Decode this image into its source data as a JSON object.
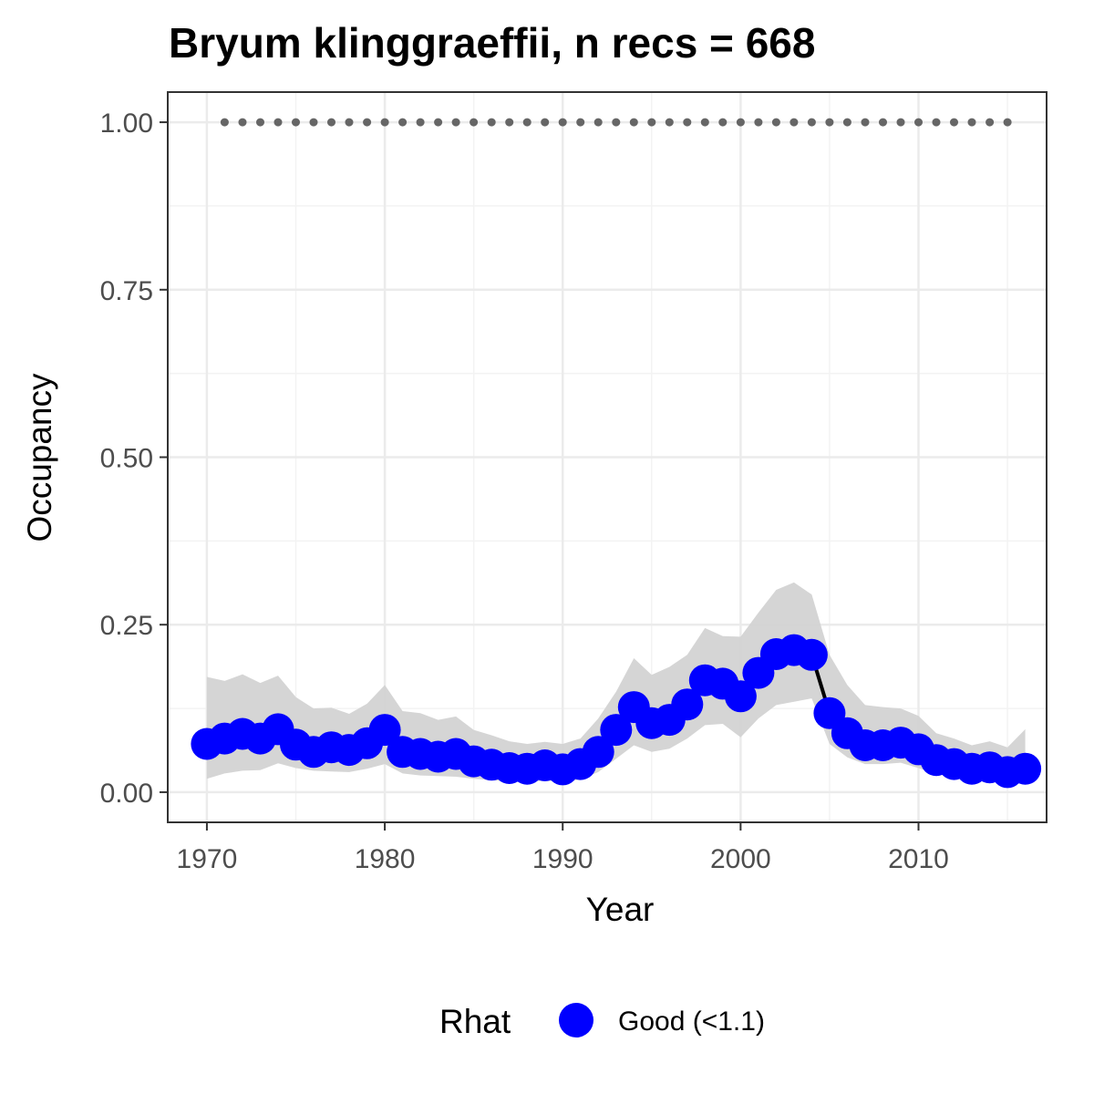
{
  "chart_data": {
    "type": "line",
    "title": "Bryum klinggraeffii, n recs = 668",
    "xlabel": "Year",
    "ylabel": "Occupancy",
    "xlim": [
      1967.8,
      2017.2
    ],
    "ylim": [
      -0.045,
      1.045
    ],
    "x_ticks": [
      1970,
      1980,
      1990,
      2000,
      2010
    ],
    "y_ticks": [
      0.0,
      0.25,
      0.5,
      0.75,
      1.0
    ],
    "y_tick_labels": [
      "0.00",
      "0.25",
      "0.50",
      "0.75",
      "1.00"
    ],
    "grid": true,
    "legend_position": "bottom",
    "series": [
      {
        "name": "Good (<1.1)",
        "color": "#0000ff",
        "x": [
          1970,
          1971,
          1972,
          1973,
          1974,
          1975,
          1976,
          1977,
          1978,
          1979,
          1980,
          1981,
          1982,
          1983,
          1984,
          1985,
          1986,
          1987,
          1988,
          1989,
          1990,
          1991,
          1992,
          1993,
          1994,
          1995,
          1996,
          1997,
          1998,
          1999,
          2000,
          2001,
          2002,
          2003,
          2004,
          2005,
          2006,
          2007,
          2008,
          2009,
          2010,
          2011,
          2012,
          2013,
          2014,
          2015,
          2016
        ],
        "y": [
          0.072,
          0.08,
          0.087,
          0.08,
          0.094,
          0.071,
          0.06,
          0.067,
          0.063,
          0.073,
          0.093,
          0.06,
          0.057,
          0.053,
          0.057,
          0.046,
          0.041,
          0.036,
          0.035,
          0.04,
          0.034,
          0.042,
          0.06,
          0.093,
          0.127,
          0.103,
          0.108,
          0.131,
          0.167,
          0.162,
          0.143,
          0.178,
          0.206,
          0.212,
          0.205,
          0.118,
          0.088,
          0.07,
          0.07,
          0.074,
          0.064,
          0.048,
          0.042,
          0.035,
          0.037,
          0.03,
          0.035
        ],
        "lower": [
          0.02,
          0.028,
          0.032,
          0.033,
          0.043,
          0.036,
          0.032,
          0.031,
          0.03,
          0.035,
          0.042,
          0.028,
          0.025,
          0.024,
          0.023,
          0.02,
          0.018,
          0.016,
          0.015,
          0.017,
          0.015,
          0.019,
          0.03,
          0.05,
          0.07,
          0.06,
          0.065,
          0.08,
          0.1,
          0.102,
          0.082,
          0.11,
          0.13,
          0.135,
          0.14,
          0.072,
          0.052,
          0.042,
          0.042,
          0.044,
          0.036,
          0.027,
          0.024,
          0.019,
          0.02,
          0.015,
          0.017
        ],
        "upper": [
          0.172,
          0.166,
          0.176,
          0.163,
          0.174,
          0.142,
          0.125,
          0.126,
          0.117,
          0.132,
          0.16,
          0.121,
          0.118,
          0.108,
          0.113,
          0.093,
          0.085,
          0.076,
          0.072,
          0.075,
          0.072,
          0.08,
          0.11,
          0.15,
          0.2,
          0.175,
          0.187,
          0.205,
          0.245,
          0.233,
          0.232,
          0.268,
          0.302,
          0.313,
          0.295,
          0.205,
          0.16,
          0.13,
          0.127,
          0.125,
          0.114,
          0.088,
          0.08,
          0.07,
          0.076,
          0.067,
          0.094
        ]
      },
      {
        "name": "",
        "color": "#666666",
        "style": "dotted",
        "x": [
          1971,
          1972,
          1973,
          1974,
          1975,
          1976,
          1977,
          1978,
          1979,
          1980,
          1981,
          1982,
          1983,
          1984,
          1985,
          1986,
          1987,
          1988,
          1989,
          1990,
          1991,
          1992,
          1993,
          1994,
          1995,
          1996,
          1997,
          1998,
          1999,
          2000,
          2001,
          2002,
          2003,
          2004,
          2005,
          2006,
          2007,
          2008,
          2009,
          2010,
          2011,
          2012,
          2013,
          2014,
          2015
        ],
        "y": [
          1,
          1,
          1,
          1,
          1,
          1,
          1,
          1,
          1,
          1,
          1,
          1,
          1,
          1,
          1,
          1,
          1,
          1,
          1,
          1,
          1,
          1,
          1,
          1,
          1,
          1,
          1,
          1,
          1,
          1,
          1,
          1,
          1,
          1,
          1,
          1,
          1,
          1,
          1,
          1,
          1,
          1,
          1,
          1,
          1
        ]
      }
    ],
    "legend": {
      "title": "Rhat",
      "entries": [
        "Good (<1.1)"
      ]
    },
    "colors": {
      "band": "#d3d3d3",
      "line": "#000000",
      "panel_border": "#333333",
      "grid": "#ebebeb"
    }
  }
}
